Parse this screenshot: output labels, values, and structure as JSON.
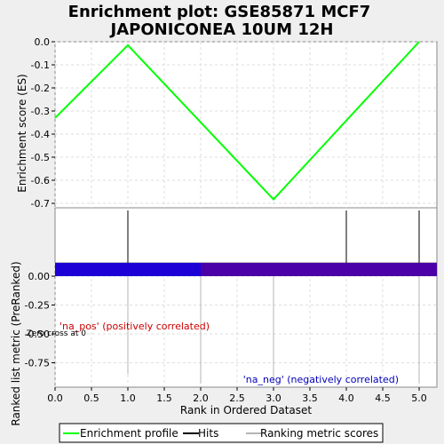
{
  "chart_data": {
    "type": "line",
    "title": "Enrichment plot: GSE85871 MCF7 JAPONICONEA 10UM 12H",
    "title_lines": [
      "Enrichment plot: GSE85871 MCF7",
      "JAPONICONEA 10UM 12H"
    ],
    "xlabel": "Rank in Ordered Dataset",
    "xlim": [
      0,
      5.25
    ],
    "xticks": [
      "0.0",
      "0.5",
      "1.0",
      "1.5",
      "2.0",
      "2.5",
      "3.0",
      "3.5",
      "4.0",
      "4.5",
      "5.0"
    ],
    "grid": true,
    "legend_position": "bottom",
    "es_panel": {
      "ylabel": "Enrichment score (ES)",
      "ylim": [
        -0.72,
        0.0
      ],
      "yticks": [
        "0.0",
        "-0.1",
        "-0.2",
        "-0.3",
        "-0.4",
        "-0.5",
        "-0.6",
        "-0.7"
      ],
      "series": [
        {
          "name": "Enrichment profile",
          "color": "#00ff00",
          "x": [
            0,
            1,
            3,
            5
          ],
          "y": [
            -0.33,
            -0.015,
            -0.683,
            0.0
          ]
        }
      ]
    },
    "hits": {
      "name": "Hits",
      "color": "#000000",
      "x": [
        1,
        4,
        5
      ]
    },
    "gradient_bar": {
      "left_color": "#1c00d6",
      "right_color": "#4b00a8",
      "boundary_x": 2
    },
    "rank_panel": {
      "ylabel": "Ranked list metric (PreRanked)",
      "ylim": [
        -0.95,
        0.1
      ],
      "yticks": [
        "0.00",
        "-0.25",
        "-0.50",
        "-0.75"
      ],
      "series": [
        {
          "name": "Ranking metric scores",
          "color": "#b4b4b4",
          "x": [
            1,
            2,
            3,
            5
          ],
          "y": [
            -0.85,
            -0.93,
            -0.93,
            -0.93
          ]
        }
      ],
      "zero_cross_label": "Zero cross at 0",
      "pos_label": "'na_pos' (positively correlated)",
      "neg_label": "'na_neg' (negatively correlated)",
      "pos_color": "#cc0000",
      "neg_color": "#0000bb"
    },
    "legend": [
      {
        "label": "Enrichment profile",
        "color": "#00ff00"
      },
      {
        "label": "Hits",
        "color": "#000000"
      },
      {
        "label": "Ranking metric scores",
        "color": "#b4b4b4"
      }
    ]
  }
}
